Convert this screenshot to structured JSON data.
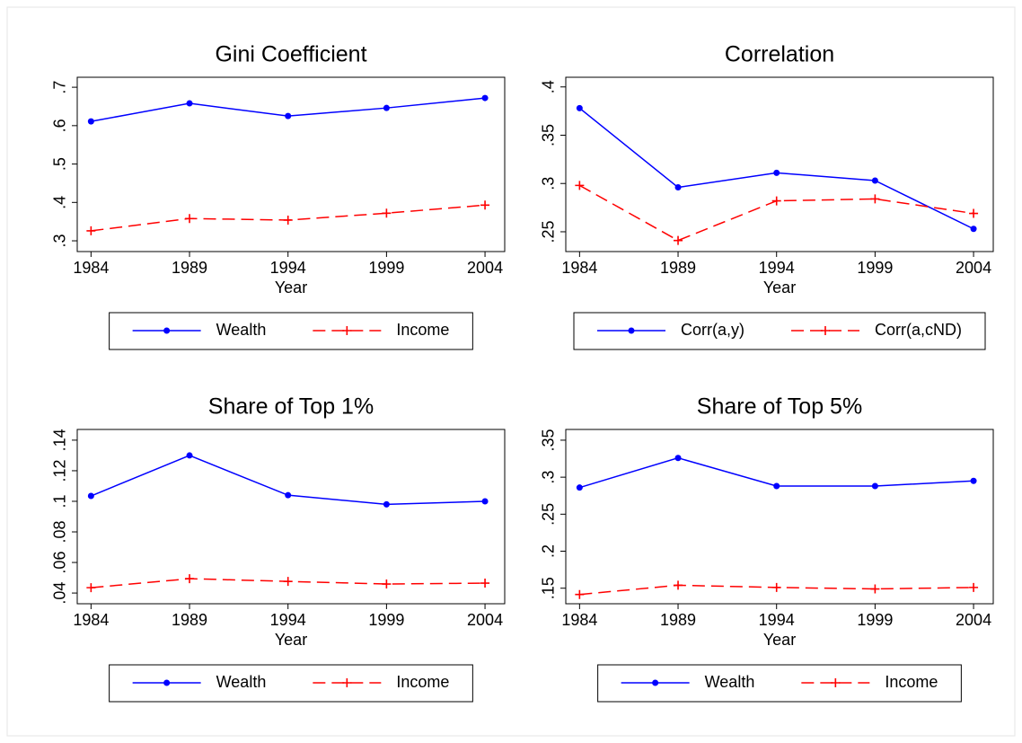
{
  "chart_data": [
    {
      "type": "line",
      "title": "Gini Coefficient",
      "xlabel": "Year",
      "x": [
        1984,
        1989,
        1994,
        1999,
        2004
      ],
      "xlim": [
        1983.3,
        2005
      ],
      "xticks": [
        1984,
        1989,
        1994,
        1999,
        2004
      ],
      "ylim": [
        0.272,
        0.726
      ],
      "yticks": [
        {
          "value": 0.3,
          "label": ".3"
        },
        {
          "value": 0.4,
          "label": ".4"
        },
        {
          "value": 0.5,
          "label": ".5"
        },
        {
          "value": 0.6,
          "label": ".6"
        },
        {
          "value": 0.7,
          "label": ".7"
        }
      ],
      "series": [
        {
          "name": "Wealth",
          "color": "#0000ff",
          "linestyle": "solid",
          "marker": "circle",
          "values": [
            0.611,
            0.658,
            0.625,
            0.646,
            0.672
          ]
        },
        {
          "name": "Income",
          "color": "#ff0000",
          "linestyle": "dashed",
          "marker": "plus",
          "values": [
            0.326,
            0.358,
            0.354,
            0.372,
            0.393
          ]
        }
      ]
    },
    {
      "type": "line",
      "title": "Correlation",
      "xlabel": "Year",
      "x": [
        1984,
        1989,
        1994,
        1999,
        2004
      ],
      "xlim": [
        1983.3,
        2005
      ],
      "xticks": [
        1984,
        1989,
        1994,
        1999,
        2004
      ],
      "ylim": [
        0.2295,
        0.41
      ],
      "yticks": [
        {
          "value": 0.25,
          "label": ".25"
        },
        {
          "value": 0.3,
          "label": ".3"
        },
        {
          "value": 0.35,
          "label": ".35"
        },
        {
          "value": 0.4,
          "label": ".4"
        }
      ],
      "series": [
        {
          "name": "Corr(a,y)",
          "color": "#0000ff",
          "linestyle": "solid",
          "marker": "circle",
          "values": [
            0.378,
            0.296,
            0.311,
            0.303,
            0.253
          ]
        },
        {
          "name": "Corr(a,cND)",
          "color": "#ff0000",
          "linestyle": "dashed",
          "marker": "plus",
          "values": [
            0.298,
            0.241,
            0.282,
            0.284,
            0.269
          ]
        }
      ]
    },
    {
      "type": "line",
      "title": "Share of Top 1%",
      "xlabel": "Year",
      "x": [
        1984,
        1989,
        1994,
        1999,
        2004
      ],
      "xlim": [
        1983.3,
        2005
      ],
      "xticks": [
        1984,
        1989,
        1994,
        1999,
        2004
      ],
      "ylim": [
        0.033,
        0.147
      ],
      "yticks": [
        {
          "value": 0.04,
          "label": ".04"
        },
        {
          "value": 0.06,
          "label": ".06"
        },
        {
          "value": 0.08,
          "label": ".08"
        },
        {
          "value": 0.1,
          "label": ".1"
        },
        {
          "value": 0.12,
          "label": ".12"
        },
        {
          "value": 0.14,
          "label": ".14"
        }
      ],
      "series": [
        {
          "name": "Wealth",
          "color": "#0000ff",
          "linestyle": "solid",
          "marker": "circle",
          "values": [
            0.1035,
            0.13,
            0.104,
            0.098,
            0.1
          ]
        },
        {
          "name": "Income",
          "color": "#ff0000",
          "linestyle": "dashed",
          "marker": "plus",
          "values": [
            0.0435,
            0.0494,
            0.0476,
            0.0459,
            0.0465
          ]
        }
      ]
    },
    {
      "type": "line",
      "title": "Share of Top 5%",
      "xlabel": "Year",
      "x": [
        1984,
        1989,
        1994,
        1999,
        2004
      ],
      "xlim": [
        1983.3,
        2005
      ],
      "xticks": [
        1984,
        1989,
        1994,
        1999,
        2004
      ],
      "ylim": [
        0.129,
        0.3645
      ],
      "yticks": [
        {
          "value": 0.15,
          "label": ".15"
        },
        {
          "value": 0.2,
          "label": ".2"
        },
        {
          "value": 0.25,
          "label": ".25"
        },
        {
          "value": 0.3,
          "label": ".3"
        },
        {
          "value": 0.35,
          "label": ".35"
        }
      ],
      "series": [
        {
          "name": "Wealth",
          "color": "#0000ff",
          "linestyle": "solid",
          "marker": "circle",
          "values": [
            0.286,
            0.326,
            0.288,
            0.288,
            0.295
          ]
        },
        {
          "name": "Income",
          "color": "#ff0000",
          "linestyle": "dashed",
          "marker": "plus",
          "values": [
            0.1415,
            0.154,
            0.151,
            0.149,
            0.151
          ]
        }
      ]
    }
  ]
}
